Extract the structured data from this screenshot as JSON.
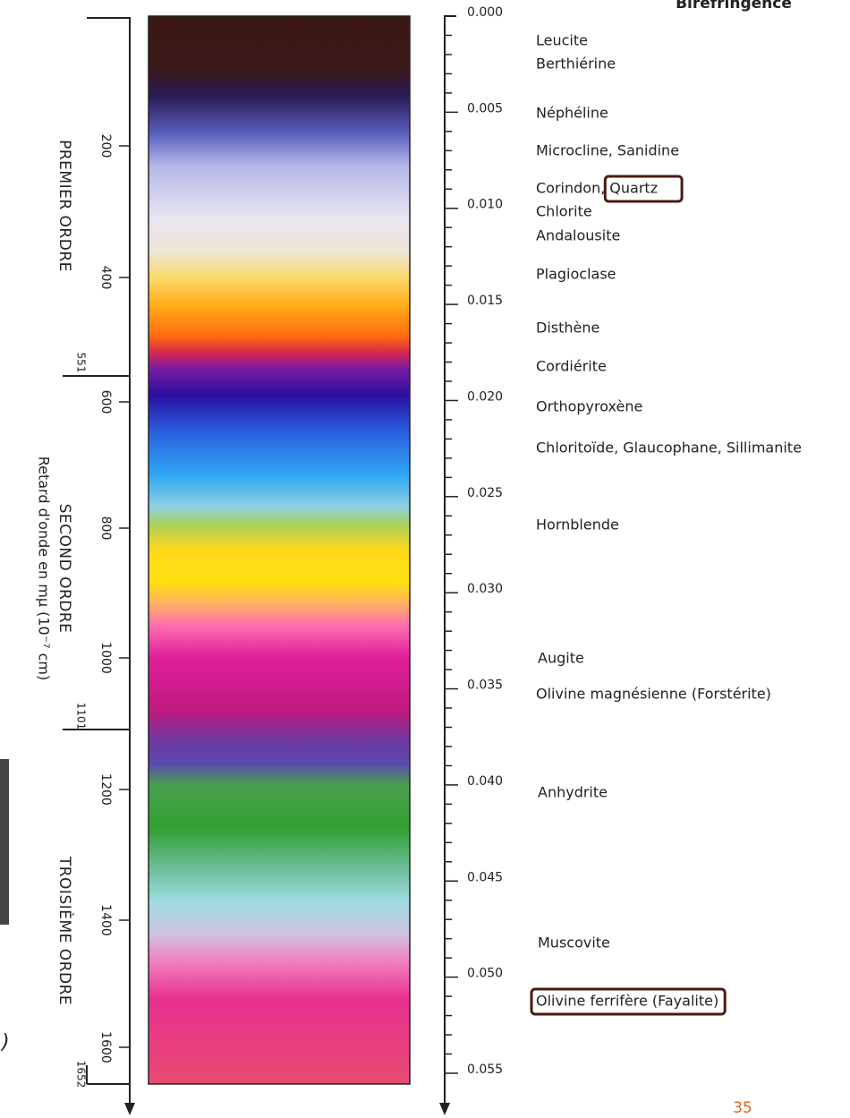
{
  "header": {
    "title": "Biréfringence"
  },
  "left_axis": {
    "title": "Retard d'onde en mμ (10⁻⁷ cm)",
    "orders": [
      "PREMIER ORDRE",
      "SECOND ORDRE",
      "TROISIÈME ORDRE"
    ],
    "ticks": [
      "200",
      "400",
      "551",
      "600",
      "800",
      "1000",
      "1101",
      "1200",
      "1400",
      "1600",
      "1652"
    ]
  },
  "right_axis": {
    "ticks": [
      "0.000",
      "0.005",
      "0.010",
      "0.015",
      "0.020",
      "0.025",
      "0.030",
      "0.035",
      "0.040",
      "0.045",
      "0.050",
      "0.055"
    ]
  },
  "minerals": [
    {
      "text": "Leucite"
    },
    {
      "text": "Berthiérine"
    },
    {
      "text": "Néphéline"
    },
    {
      "text": "Microcline, Sanidine"
    },
    {
      "text": "Corindon,",
      "boxed_text": "Quartz"
    },
    {
      "text": "Chlorite"
    },
    {
      "text": "Andalousite"
    },
    {
      "text": "Plagioclase"
    },
    {
      "text": "Disthène"
    },
    {
      "text": "Cordiérite"
    },
    {
      "text": "Orthopyroxène"
    },
    {
      "text": "Chloritoïde, Glaucophane, Sillimanite"
    },
    {
      "text": "Hornblende"
    },
    {
      "text": "Augite"
    },
    {
      "text": "Olivine magnésienne (Forstérite)"
    },
    {
      "text": "Anhydrite"
    },
    {
      "text": "Muscovite"
    },
    {
      "boxed_text": "Olivine ferrifère (Fayalite)"
    }
  ],
  "page_number": "35",
  "fragment": ")"
}
